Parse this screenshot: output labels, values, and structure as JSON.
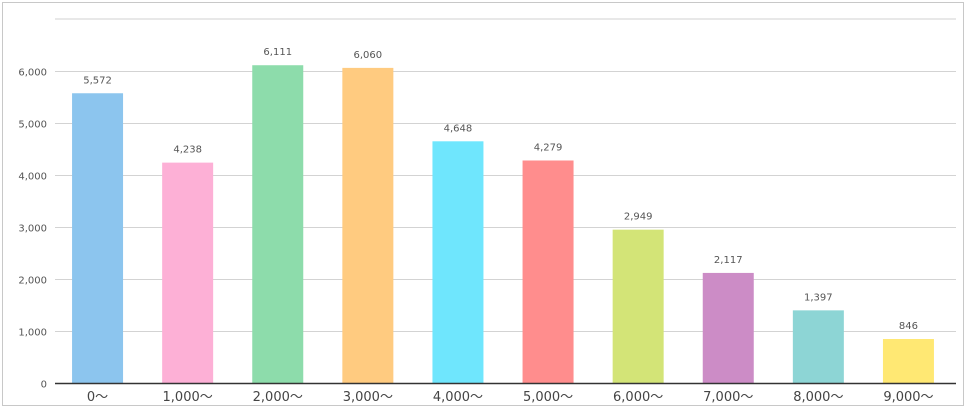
{
  "chart_data": {
    "type": "bar",
    "categories": [
      "0～",
      "1,000～",
      "2,000～",
      "3,000～",
      "4,000～",
      "5,000～",
      "6,000～",
      "7,000～",
      "8,000～",
      "9,000～"
    ],
    "values": [
      5572,
      4238,
      6111,
      6060,
      4648,
      4279,
      2949,
      2117,
      1397,
      846
    ],
    "value_labels": [
      "5,572",
      "4,238",
      "6,111",
      "6,060",
      "4,648",
      "4,279",
      "2,949",
      "2,117",
      "1,397",
      "846"
    ],
    "colors": [
      "#8cc5ee",
      "#fdb0d6",
      "#8ddcab",
      "#ffcb80",
      "#6fe6fd",
      "#ff8d8d",
      "#d3e477",
      "#cc8cc6",
      "#8dd5d5",
      "#ffe873"
    ],
    "yticks": [
      0,
      1000,
      2000,
      3000,
      4000,
      5000,
      6000
    ],
    "ytick_labels": [
      "0",
      "1,000",
      "2,000",
      "3,000",
      "4,000",
      "5,000",
      "6,000"
    ],
    "ylim": [
      0,
      7000
    ],
    "grid": true,
    "title": "",
    "xlabel": "",
    "ylabel": ""
  }
}
